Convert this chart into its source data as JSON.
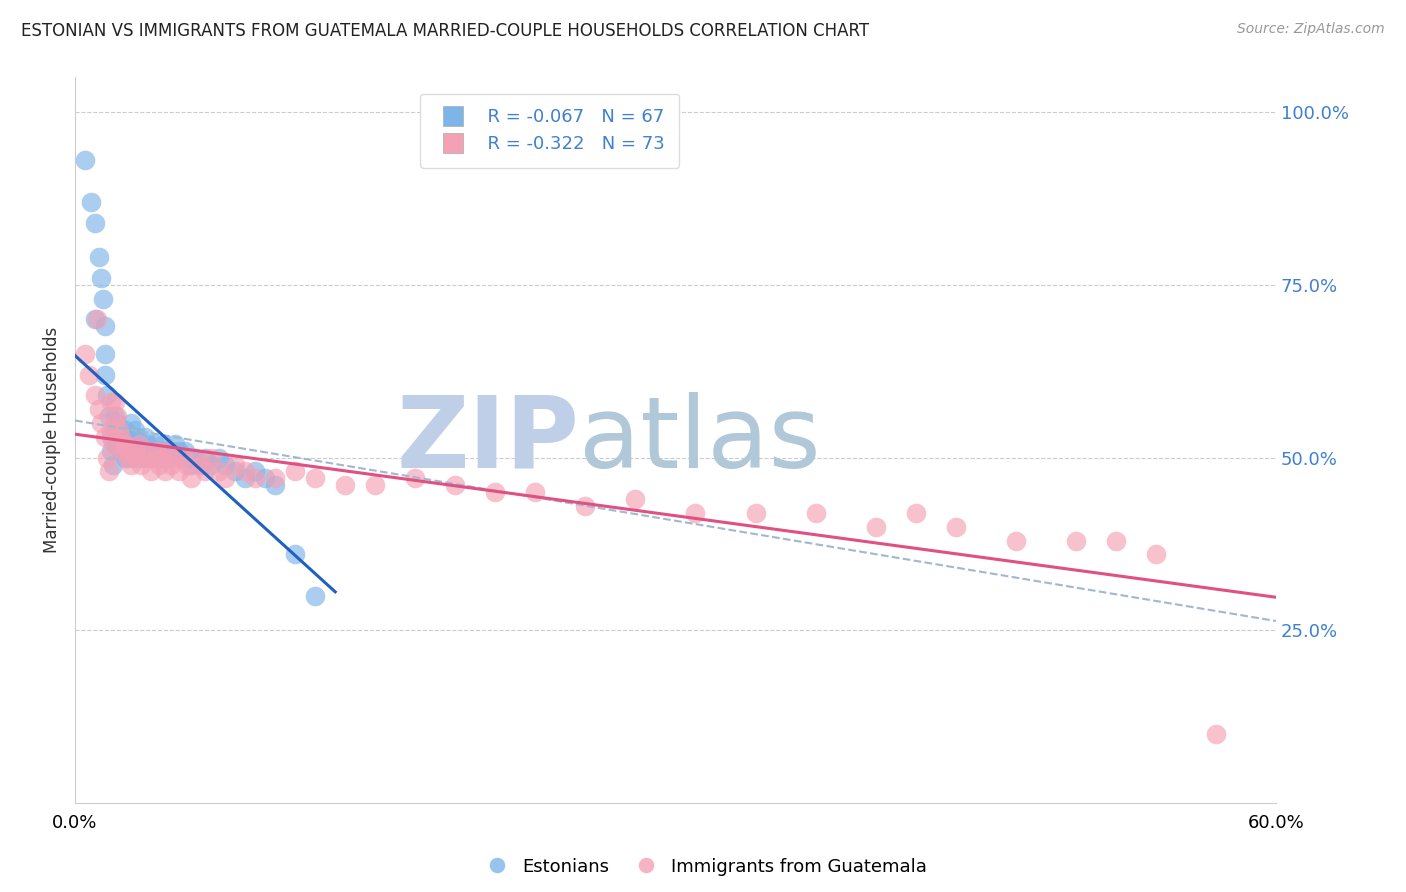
{
  "title": "ESTONIAN VS IMMIGRANTS FROM GUATEMALA MARRIED-COUPLE HOUSEHOLDS CORRELATION CHART",
  "source": "Source: ZipAtlas.com",
  "ylabel_left": "Married-couple Households",
  "x_min": 0.0,
  "x_max": 0.6,
  "y_min": 0.0,
  "y_max": 1.05,
  "right_yticks": [
    1.0,
    0.75,
    0.5,
    0.25
  ],
  "right_ytick_labels": [
    "100.0%",
    "75.0%",
    "50.0%",
    "25.0%"
  ],
  "legend_r1": "R = -0.067",
  "legend_n1": "N = 67",
  "legend_r2": "R = -0.322",
  "legend_n2": "N = 73",
  "color_estonian": "#7eb5e8",
  "color_guatemala": "#f4a0b5",
  "color_line_estonian": "#2060c0",
  "color_line_guatemala": "#e05080",
  "color_dashed": "#a0b8d0",
  "color_right_axis": "#4080d0",
  "color_title": "#222222",
  "watermark_zip": "ZIP",
  "watermark_atlas": "atlas",
  "watermark_color_zip": "#c0cfe8",
  "watermark_color_atlas": "#b0c8d8",
  "estonian_x": [
    0.005,
    0.008,
    0.01,
    0.01,
    0.012,
    0.013,
    0.014,
    0.015,
    0.015,
    0.015,
    0.016,
    0.017,
    0.018,
    0.018,
    0.019,
    0.02,
    0.02,
    0.02,
    0.021,
    0.021,
    0.022,
    0.022,
    0.023,
    0.023,
    0.024,
    0.025,
    0.025,
    0.026,
    0.027,
    0.028,
    0.028,
    0.029,
    0.03,
    0.03,
    0.031,
    0.032,
    0.033,
    0.035,
    0.036,
    0.037,
    0.038,
    0.04,
    0.041,
    0.042,
    0.044,
    0.045,
    0.046,
    0.048,
    0.05,
    0.052,
    0.053,
    0.055,
    0.057,
    0.058,
    0.06,
    0.063,
    0.065,
    0.068,
    0.072,
    0.075,
    0.08,
    0.085,
    0.09,
    0.095,
    0.1,
    0.11,
    0.12
  ],
  "estonian_y": [
    0.93,
    0.87,
    0.84,
    0.7,
    0.79,
    0.76,
    0.73,
    0.69,
    0.65,
    0.62,
    0.59,
    0.56,
    0.53,
    0.51,
    0.49,
    0.56,
    0.54,
    0.52,
    0.55,
    0.53,
    0.54,
    0.52,
    0.53,
    0.51,
    0.52,
    0.54,
    0.5,
    0.53,
    0.52,
    0.5,
    0.55,
    0.52,
    0.54,
    0.51,
    0.53,
    0.52,
    0.5,
    0.53,
    0.52,
    0.51,
    0.5,
    0.52,
    0.51,
    0.5,
    0.52,
    0.51,
    0.5,
    0.51,
    0.52,
    0.51,
    0.5,
    0.51,
    0.5,
    0.49,
    0.5,
    0.49,
    0.5,
    0.49,
    0.5,
    0.49,
    0.48,
    0.47,
    0.48,
    0.47,
    0.46,
    0.36,
    0.3
  ],
  "guatemala_x": [
    0.005,
    0.007,
    0.01,
    0.011,
    0.012,
    0.013,
    0.015,
    0.016,
    0.017,
    0.018,
    0.018,
    0.019,
    0.02,
    0.02,
    0.021,
    0.022,
    0.022,
    0.023,
    0.024,
    0.025,
    0.026,
    0.027,
    0.028,
    0.03,
    0.031,
    0.032,
    0.033,
    0.035,
    0.036,
    0.038,
    0.04,
    0.041,
    0.042,
    0.044,
    0.045,
    0.046,
    0.048,
    0.05,
    0.052,
    0.054,
    0.056,
    0.058,
    0.06,
    0.063,
    0.065,
    0.068,
    0.072,
    0.075,
    0.08,
    0.085,
    0.09,
    0.1,
    0.11,
    0.12,
    0.135,
    0.15,
    0.17,
    0.19,
    0.21,
    0.23,
    0.255,
    0.28,
    0.31,
    0.34,
    0.37,
    0.4,
    0.42,
    0.44,
    0.47,
    0.5,
    0.52,
    0.54,
    0.57
  ],
  "guatemala_y": [
    0.65,
    0.62,
    0.59,
    0.7,
    0.57,
    0.55,
    0.53,
    0.5,
    0.48,
    0.58,
    0.54,
    0.52,
    0.58,
    0.55,
    0.56,
    0.54,
    0.52,
    0.53,
    0.51,
    0.52,
    0.5,
    0.51,
    0.49,
    0.51,
    0.5,
    0.52,
    0.49,
    0.5,
    0.51,
    0.48,
    0.5,
    0.51,
    0.49,
    0.5,
    0.48,
    0.51,
    0.49,
    0.5,
    0.48,
    0.5,
    0.49,
    0.47,
    0.5,
    0.49,
    0.48,
    0.5,
    0.48,
    0.47,
    0.49,
    0.48,
    0.47,
    0.47,
    0.48,
    0.47,
    0.46,
    0.46,
    0.47,
    0.46,
    0.45,
    0.45,
    0.43,
    0.44,
    0.42,
    0.42,
    0.42,
    0.4,
    0.42,
    0.4,
    0.38,
    0.38,
    0.38,
    0.36,
    0.1
  ],
  "figsize": [
    14.06,
    8.92
  ],
  "dpi": 100
}
